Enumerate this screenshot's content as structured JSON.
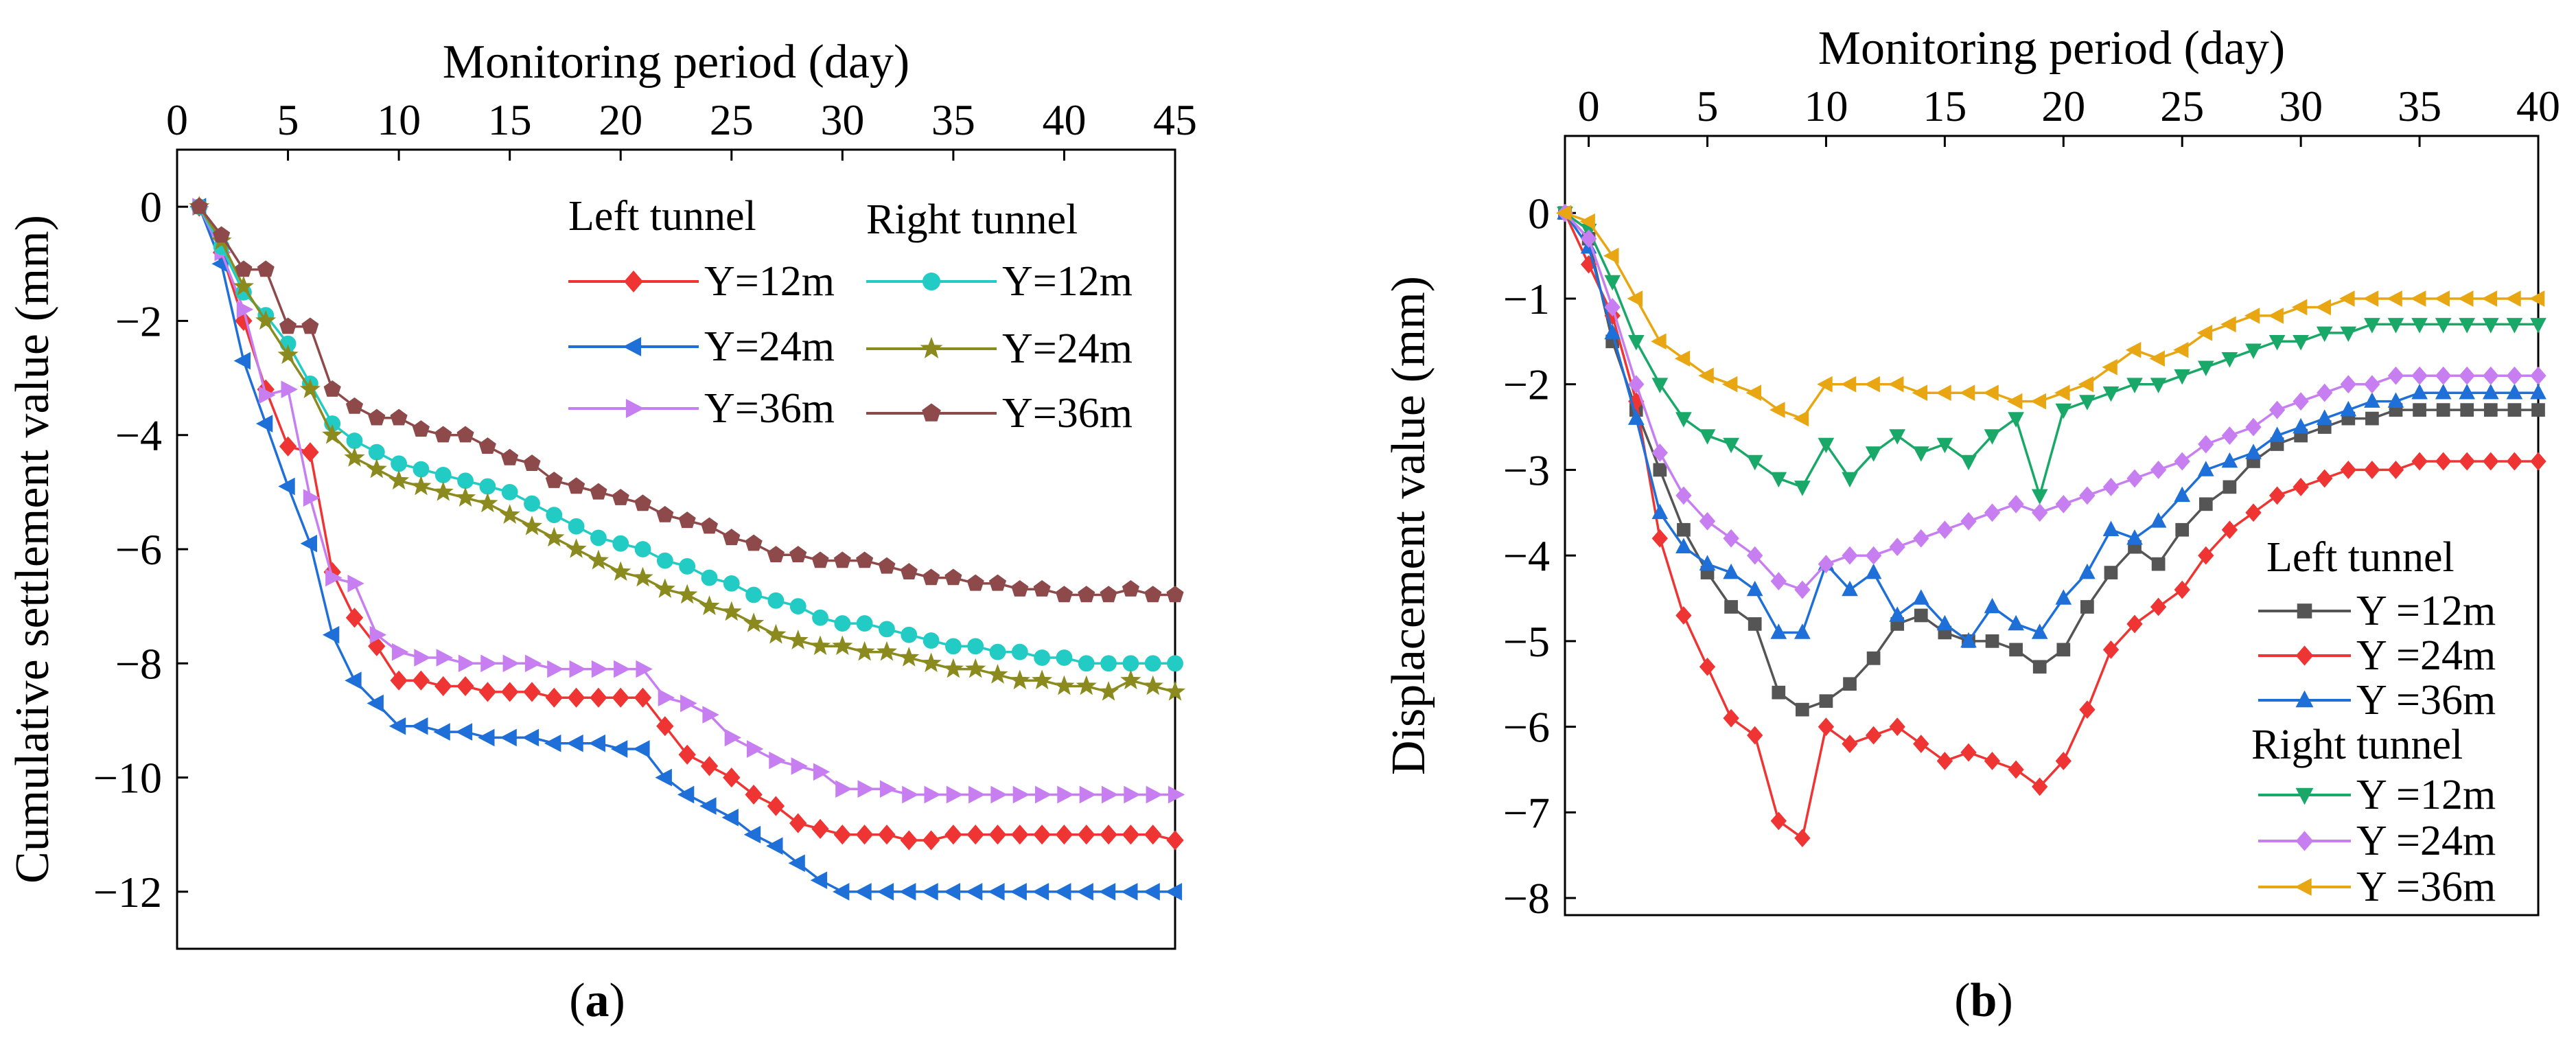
{
  "figure": {
    "caption_a": "(a)",
    "caption_a_letter": "a",
    "caption_b": "(b)",
    "caption_b_letter": "b"
  },
  "chart_data": [
    {
      "type": "line",
      "panel": "a",
      "title": "",
      "xlabel": "Monitoring period (day)",
      "ylabel": "Cumulative settlement value (mm)",
      "xlim": [
        0,
        45
      ],
      "ylim": [
        -13,
        1
      ],
      "xticks": [
        "0",
        "5",
        "10",
        "15",
        "20",
        "25",
        "30",
        "35",
        "40",
        "45"
      ],
      "yticks": [
        "0",
        "−2",
        "−4",
        "−6",
        "−8",
        "−10",
        "−12"
      ],
      "x_axis_position": "top",
      "legend": {
        "position": "top-right",
        "group_left": "Left tunnel",
        "group_right": "Right tunnel"
      },
      "x": [
        1,
        2,
        3,
        4,
        5,
        6,
        7,
        8,
        9,
        10,
        11,
        12,
        13,
        14,
        15,
        16,
        17,
        18,
        19,
        20,
        21,
        22,
        23,
        24,
        25,
        26,
        27,
        28,
        29,
        30,
        31,
        32,
        33,
        34,
        35,
        36,
        37,
        38,
        39,
        40,
        41,
        42,
        43,
        44,
        45
      ],
      "series": [
        {
          "name": "Y=12m",
          "group": "Left tunnel",
          "color": "#ef3434",
          "marker": "diamond",
          "values": [
            0,
            -0.8,
            -2.0,
            -3.2,
            -4.2,
            -4.3,
            -6.4,
            -7.2,
            -7.7,
            -8.3,
            -8.3,
            -8.4,
            -8.4,
            -8.5,
            -8.5,
            -8.5,
            -8.6,
            -8.6,
            -8.6,
            -8.6,
            -8.6,
            -9.1,
            -9.6,
            -9.8,
            -10.0,
            -10.3,
            -10.5,
            -10.8,
            -10.9,
            -11.0,
            -11.0,
            -11.0,
            -11.1,
            -11.1,
            -11.0,
            -11.0,
            -11.0,
            -11.0,
            -11.0,
            -11.0,
            -11.0,
            -11.0,
            -11.0,
            -11.0,
            -11.1
          ]
        },
        {
          "name": "Y=24m",
          "group": "Left tunnel",
          "color": "#1f6fd8",
          "marker": "triangle-left",
          "values": [
            0,
            -1.0,
            -2.7,
            -3.8,
            -4.9,
            -5.9,
            -7.5,
            -8.3,
            -8.7,
            -9.1,
            -9.1,
            -9.2,
            -9.2,
            -9.3,
            -9.3,
            -9.3,
            -9.4,
            -9.4,
            -9.4,
            -9.5,
            -9.5,
            -10.0,
            -10.3,
            -10.5,
            -10.7,
            -11.0,
            -11.2,
            -11.5,
            -11.8,
            -12.0,
            -12.0,
            -12.0,
            -12.0,
            -12.0,
            -12.0,
            -12.0,
            -12.0,
            -12.0,
            -12.0,
            -12.0,
            -12.0,
            -12.0,
            -12.0,
            -12.0,
            -12.0
          ]
        },
        {
          "name": "Y=36m",
          "group": "Left tunnel",
          "color": "#c77ef0",
          "marker": "triangle-right",
          "values": [
            0,
            -0.8,
            -1.8,
            -3.3,
            -3.2,
            -5.1,
            -6.5,
            -6.6,
            -7.5,
            -7.8,
            -7.9,
            -7.9,
            -8.0,
            -8.0,
            -8.0,
            -8.0,
            -8.1,
            -8.1,
            -8.1,
            -8.1,
            -8.1,
            -8.6,
            -8.7,
            -8.9,
            -9.3,
            -9.5,
            -9.7,
            -9.8,
            -9.9,
            -10.2,
            -10.2,
            -10.2,
            -10.3,
            -10.3,
            -10.3,
            -10.3,
            -10.3,
            -10.3,
            -10.3,
            -10.3,
            -10.3,
            -10.3,
            -10.3,
            -10.3,
            -10.3
          ]
        },
        {
          "name": "Y=12m",
          "group": "Right tunnel",
          "color": "#22ccc4",
          "marker": "circle",
          "values": [
            0,
            -0.7,
            -1.5,
            -1.9,
            -2.4,
            -3.1,
            -3.8,
            -4.1,
            -4.3,
            -4.5,
            -4.6,
            -4.7,
            -4.8,
            -4.9,
            -5.0,
            -5.2,
            -5.4,
            -5.6,
            -5.8,
            -5.9,
            -6.0,
            -6.2,
            -6.3,
            -6.5,
            -6.6,
            -6.8,
            -6.9,
            -7.0,
            -7.2,
            -7.3,
            -7.3,
            -7.4,
            -7.5,
            -7.6,
            -7.7,
            -7.7,
            -7.8,
            -7.8,
            -7.9,
            -7.9,
            -8.0,
            -8.0,
            -8.0,
            -8.0,
            -8.0
          ]
        },
        {
          "name": "Y=24m",
          "group": "Right tunnel",
          "color": "#8a8a1e",
          "marker": "star",
          "values": [
            0,
            -0.6,
            -1.4,
            -2.0,
            -2.6,
            -3.2,
            -4.0,
            -4.4,
            -4.6,
            -4.8,
            -4.9,
            -5.0,
            -5.1,
            -5.2,
            -5.4,
            -5.6,
            -5.8,
            -6.0,
            -6.2,
            -6.4,
            -6.5,
            -6.7,
            -6.8,
            -7.0,
            -7.1,
            -7.3,
            -7.5,
            -7.6,
            -7.7,
            -7.7,
            -7.8,
            -7.8,
            -7.9,
            -8.0,
            -8.1,
            -8.1,
            -8.2,
            -8.3,
            -8.3,
            -8.4,
            -8.4,
            -8.5,
            -8.3,
            -8.4,
            -8.5
          ]
        },
        {
          "name": "Y=36m",
          "group": "Right tunnel",
          "color": "#8e4a4a",
          "marker": "pentagon",
          "values": [
            0,
            -0.5,
            -1.1,
            -1.1,
            -2.1,
            -2.1,
            -3.2,
            -3.5,
            -3.7,
            -3.7,
            -3.9,
            -4.0,
            -4.0,
            -4.2,
            -4.4,
            -4.5,
            -4.8,
            -4.9,
            -5.0,
            -5.1,
            -5.2,
            -5.4,
            -5.5,
            -5.6,
            -5.8,
            -5.9,
            -6.1,
            -6.1,
            -6.2,
            -6.2,
            -6.2,
            -6.3,
            -6.4,
            -6.5,
            -6.5,
            -6.6,
            -6.6,
            -6.7,
            -6.7,
            -6.8,
            -6.8,
            -6.8,
            -6.7,
            -6.8,
            -6.8
          ]
        }
      ]
    },
    {
      "type": "line",
      "panel": "b",
      "title": "",
      "xlabel": "Monitoring period (day)",
      "ylabel": "Displacement value (mm)",
      "xlim": [
        -1,
        40
      ],
      "ylim": [
        -8.2,
        0.9
      ],
      "xticks": [
        "0",
        "5",
        "10",
        "15",
        "20",
        "25",
        "30",
        "35",
        "40"
      ],
      "yticks": [
        "0",
        "−1",
        "−2",
        "−3",
        "−4",
        "−5",
        "−6",
        "−7",
        "−8"
      ],
      "x_axis_position": "top",
      "legend": {
        "position": "bottom-right",
        "group_left": "Left tunnel",
        "group_right": "Right tunnel"
      },
      "x": [
        -1,
        0,
        1,
        2,
        3,
        4,
        5,
        6,
        7,
        8,
        9,
        10,
        11,
        12,
        13,
        14,
        15,
        16,
        17,
        18,
        19,
        20,
        21,
        22,
        23,
        24,
        25,
        26,
        27,
        28,
        29,
        30,
        31,
        32,
        33,
        34,
        35,
        36,
        37,
        38,
        39,
        40
      ],
      "series": [
        {
          "name": "Y =12m",
          "group": "Left tunnel",
          "color": "#555555",
          "marker": "square",
          "values": [
            0,
            -0.3,
            -1.5,
            -2.3,
            -3.0,
            -3.7,
            -4.2,
            -4.6,
            -4.8,
            -5.6,
            -5.8,
            -5.7,
            -5.5,
            -5.2,
            -4.8,
            -4.7,
            -4.9,
            -5.0,
            -5.0,
            -5.1,
            -5.3,
            -5.1,
            -4.6,
            -4.2,
            -3.9,
            -4.1,
            -3.7,
            -3.4,
            -3.2,
            -2.9,
            -2.7,
            -2.6,
            -2.5,
            -2.4,
            -2.4,
            -2.3,
            -2.3,
            -2.3,
            -2.3,
            -2.3,
            -2.3,
            -2.3
          ]
        },
        {
          "name": "Y =24m",
          "group": "Left tunnel",
          "color": "#ef3434",
          "marker": "diamond",
          "values": [
            0,
            -0.6,
            -1.2,
            -2.2,
            -3.8,
            -4.7,
            -5.3,
            -5.9,
            -6.1,
            -7.1,
            -7.3,
            -6.0,
            -6.2,
            -6.1,
            -6.0,
            -6.2,
            -6.4,
            -6.3,
            -6.4,
            -6.5,
            -6.7,
            -6.4,
            -5.8,
            -5.1,
            -4.8,
            -4.6,
            -4.4,
            -4.0,
            -3.7,
            -3.5,
            -3.3,
            -3.2,
            -3.1,
            -3.0,
            -3.0,
            -3.0,
            -2.9,
            -2.9,
            -2.9,
            -2.9,
            -2.9,
            -2.9
          ]
        },
        {
          "name": "Y =36m",
          "group": "Left tunnel",
          "color": "#1f6fd8",
          "marker": "triangle-up",
          "values": [
            0,
            -0.4,
            -1.4,
            -2.4,
            -3.5,
            -3.9,
            -4.1,
            -4.2,
            -4.4,
            -4.9,
            -4.9,
            -4.1,
            -4.4,
            -4.2,
            -4.7,
            -4.5,
            -4.8,
            -5.0,
            -4.6,
            -4.8,
            -4.9,
            -4.5,
            -4.2,
            -3.7,
            -3.8,
            -3.6,
            -3.3,
            -3.0,
            -2.9,
            -2.8,
            -2.6,
            -2.5,
            -2.4,
            -2.3,
            -2.2,
            -2.2,
            -2.1,
            -2.1,
            -2.1,
            -2.1,
            -2.1,
            -2.1
          ]
        },
        {
          "name": "Y =12m",
          "group": "Right tunnel",
          "color": "#1aa868",
          "marker": "triangle-down",
          "values": [
            0,
            -0.2,
            -0.8,
            -1.5,
            -2.0,
            -2.4,
            -2.6,
            -2.7,
            -2.9,
            -3.1,
            -3.2,
            -2.7,
            -3.1,
            -2.8,
            -2.6,
            -2.8,
            -2.7,
            -2.9,
            -2.6,
            -2.4,
            -3.3,
            -2.3,
            -2.2,
            -2.1,
            -2.0,
            -2.0,
            -1.9,
            -1.8,
            -1.7,
            -1.6,
            -1.5,
            -1.5,
            -1.4,
            -1.4,
            -1.3,
            -1.3,
            -1.3,
            -1.3,
            -1.3,
            -1.3,
            -1.3,
            -1.3
          ]
        },
        {
          "name": "Y =24m",
          "group": "Right tunnel",
          "color": "#c77ef0",
          "marker": "diamond",
          "values": [
            0,
            -0.3,
            -1.1,
            -2.0,
            -2.8,
            -3.3,
            -3.6,
            -3.8,
            -4.0,
            -4.3,
            -4.4,
            -4.1,
            -4.0,
            -4.0,
            -3.9,
            -3.8,
            -3.7,
            -3.6,
            -3.5,
            -3.4,
            -3.5,
            -3.4,
            -3.3,
            -3.2,
            -3.1,
            -3.0,
            -2.9,
            -2.7,
            -2.6,
            -2.5,
            -2.3,
            -2.2,
            -2.1,
            -2.0,
            -2.0,
            -1.9,
            -1.9,
            -1.9,
            -1.9,
            -1.9,
            -1.9,
            -1.9
          ]
        },
        {
          "name": "Y =36m",
          "group": "Right tunnel",
          "color": "#e8a712",
          "marker": "triangle-left",
          "values": [
            0,
            -0.1,
            -0.5,
            -1.0,
            -1.5,
            -1.7,
            -1.9,
            -2.0,
            -2.1,
            -2.3,
            -2.4,
            -2.0,
            -2.0,
            -2.0,
            -2.0,
            -2.1,
            -2.1,
            -2.1,
            -2.1,
            -2.2,
            -2.2,
            -2.1,
            -2.0,
            -1.8,
            -1.6,
            -1.7,
            -1.6,
            -1.4,
            -1.3,
            -1.2,
            -1.2,
            -1.1,
            -1.1,
            -1.0,
            -1.0,
            -1.0,
            -1.0,
            -1.0,
            -1.0,
            -1.0,
            -1.0,
            -1.0
          ]
        }
      ]
    }
  ]
}
